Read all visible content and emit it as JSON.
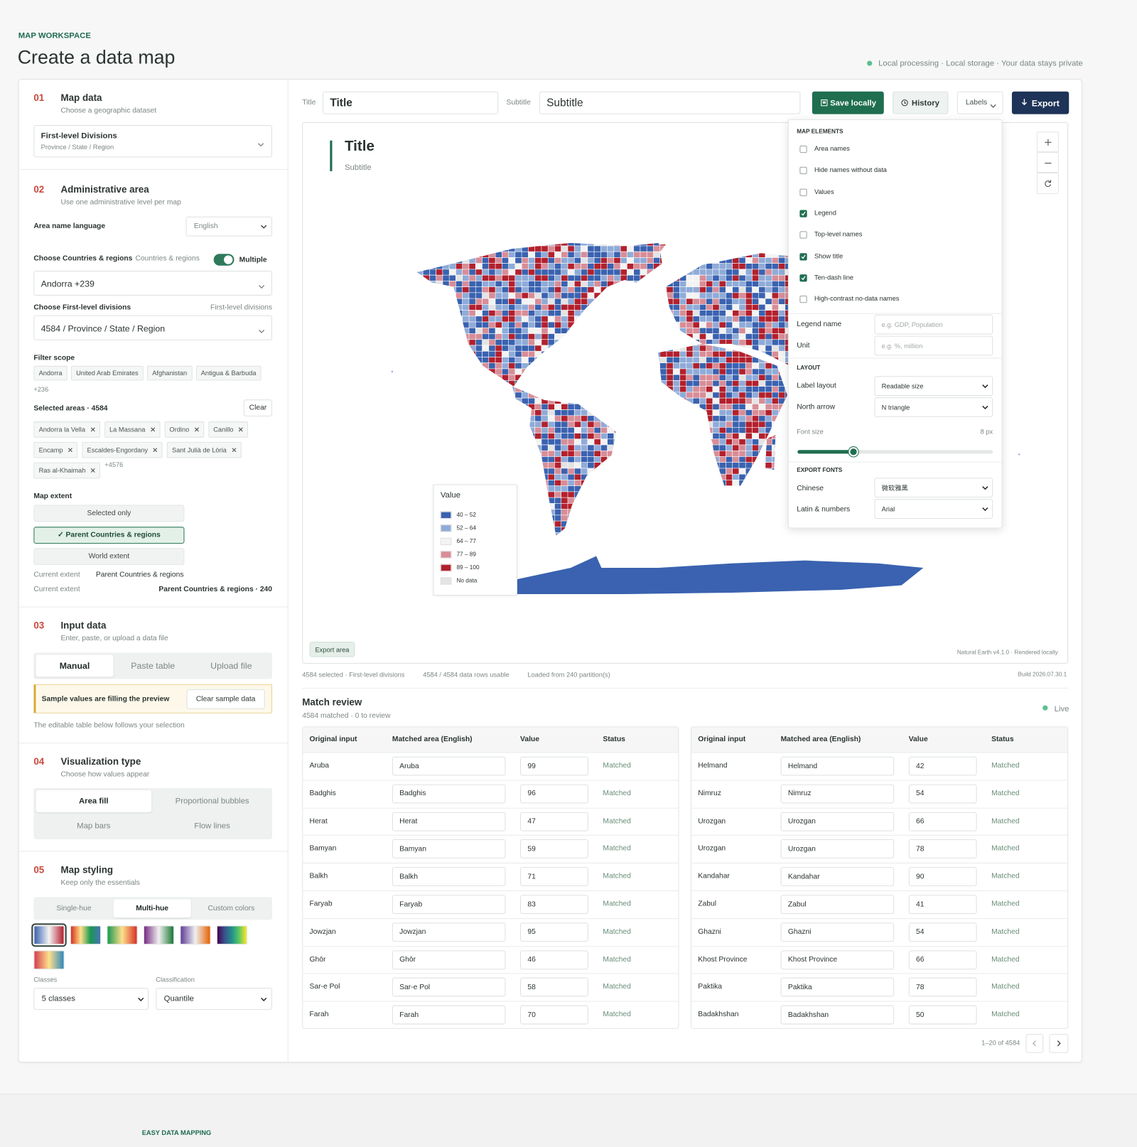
{
  "header": {
    "eyebrow": "MAP WORKSPACE",
    "title": "Create a data map",
    "privacy": "Local processing · Local storage · Your data stays private"
  },
  "map_data": {
    "num": "01",
    "title": "Map data",
    "subtitle": "Choose a geographic dataset",
    "select_title": "First-level Divisions",
    "select_sub": "Province / State / Region"
  },
  "admin": {
    "num": "02",
    "title": "Administrative area",
    "subtitle": "Use one administrative level per map",
    "lang_label": "Area name language",
    "lang_value": "English",
    "countries_label": "Choose Countries & regions",
    "countries_hint": "Countries & regions",
    "multiple": "Multiple",
    "countries_value": "Andorra +239",
    "divisions_label": "Choose First-level divisions",
    "divisions_hint": "First-level divisions",
    "divisions_value": "4584 / Province / State / Region",
    "filter_label": "Filter scope",
    "filter_chips": [
      "Andorra",
      "United Arab Emirates",
      "Afghanistan",
      "Antigua & Barbuda"
    ],
    "filter_more": "+236",
    "selected_label": "Selected areas · 4584",
    "clear": "Clear",
    "selected_chips": [
      "Andorra la Vella",
      "La Massana",
      "Ordino",
      "Canillo",
      "Encamp",
      "Escaldes-Engordany",
      "Sant Julià de Lòria",
      "Ras al-Khaimah"
    ],
    "selected_more": "+4576",
    "extent_label": "Map extent",
    "extent_options": [
      "Selected only",
      "✓ Parent Countries & regions",
      "World extent"
    ],
    "current": [
      {
        "label": "Current extent",
        "value": "Parent Countries & regions"
      },
      {
        "label": "Current extent",
        "value": "Parent Countries & regions · 240"
      }
    ]
  },
  "input": {
    "num": "03",
    "title": "Input data",
    "subtitle": "Enter, paste, or upload a data file",
    "tabs": [
      "Manual",
      "Paste table",
      "Upload file"
    ],
    "notice": "Sample values are filling the preview",
    "clear_sample": "Clear sample data",
    "note": "The editable table below follows your selection"
  },
  "viz": {
    "num": "04",
    "title": "Visualization type",
    "subtitle": "Choose how values appear",
    "options": [
      "Area fill",
      "Proportional bubbles",
      "Map bars",
      "Flow lines"
    ]
  },
  "styling": {
    "num": "05",
    "title": "Map styling",
    "subtitle": "Keep only the essentials",
    "tabs": [
      "Single-hue",
      "Multi-hue",
      "Custom colors"
    ],
    "classes_label": "Classes",
    "classes_value": "5 classes",
    "classification_label": "Classification",
    "classification_value": "Quantile"
  },
  "toolbar": {
    "title_label": "Title",
    "title_value": "Title",
    "subtitle_label": "Subtitle",
    "subtitle_value": "Subtitle",
    "save": "Save locally",
    "history": "History",
    "labels": "Labels",
    "export": "Export"
  },
  "map": {
    "title": "Title",
    "subtitle": "Subtitle",
    "legend_title": "Value",
    "legend": [
      {
        "label": "40 – 52",
        "color": "#3a62b0"
      },
      {
        "label": "52 – 64",
        "color": "#8fabd8"
      },
      {
        "label": "64 – 77",
        "color": "#f3f3f3"
      },
      {
        "label": "77 – 89",
        "color": "#d88d97"
      },
      {
        "label": "89 – 100",
        "color": "#b3202d"
      },
      {
        "label": "No data",
        "color": "#e4e4e4"
      }
    ],
    "export_area": "Export area",
    "credit": "Natural Earth v4.1.0 · Rendered locally"
  },
  "panel": {
    "elements_heading": "MAP ELEMENTS",
    "checks": [
      {
        "label": "Area names",
        "checked": false
      },
      {
        "label": "Hide names without data",
        "checked": false
      },
      {
        "label": "Values",
        "checked": false
      },
      {
        "label": "Legend",
        "checked": true
      },
      {
        "label": "Top-level names",
        "checked": false
      },
      {
        "label": "Show title",
        "checked": true
      },
      {
        "label": "Ten-dash line",
        "checked": true
      },
      {
        "label": "High-contrast no-data names",
        "checked": false
      }
    ],
    "legend_name_label": "Legend name",
    "legend_name_placeholder": "e.g. GDP, Population",
    "unit_label": "Unit",
    "unit_placeholder": "e.g. %, million",
    "layout_heading": "LAYOUT",
    "label_layout_label": "Label layout",
    "label_layout_value": "Readable size",
    "north_label": "North arrow",
    "north_value": "N triangle",
    "font_size_label": "Font size",
    "font_size_value": "8 px",
    "fonts_heading": "EXPORT FONTS",
    "chinese_label": "Chinese",
    "chinese_value": "微软雅黑",
    "latin_label": "Latin & numbers",
    "latin_value": "Arial"
  },
  "status_bar": [
    "4584 selected · First-level divisions",
    "4584 / 4584 data rows usable",
    "Loaded from 240 partition(s)"
  ],
  "build": "Build 2026.07.30.1",
  "review": {
    "title": "Match review",
    "subtitle": "4584 matched · 0 to review",
    "live": "Live",
    "columns": [
      "Original input",
      "Matched area (English)",
      "Value",
      "Status"
    ],
    "tables": [
      [
        {
          "input": "Aruba",
          "match": "Aruba",
          "value": 99,
          "status": "Matched"
        },
        {
          "input": "Badghis",
          "match": "Badghis",
          "value": 96,
          "status": "Matched"
        },
        {
          "input": "Herat",
          "match": "Herat",
          "value": 47,
          "status": "Matched"
        },
        {
          "input": "Bamyan",
          "match": "Bamyan",
          "value": 59,
          "status": "Matched"
        },
        {
          "input": "Balkh",
          "match": "Balkh",
          "value": 71,
          "status": "Matched"
        },
        {
          "input": "Faryab",
          "match": "Faryab",
          "value": 83,
          "status": "Matched"
        },
        {
          "input": "Jowzjan",
          "match": "Jowzjan",
          "value": 95,
          "status": "Matched"
        },
        {
          "input": "Ghōr",
          "match": "Ghōr",
          "value": 46,
          "status": "Matched"
        },
        {
          "input": "Sar-e Pol",
          "match": "Sar-e Pol",
          "value": 58,
          "status": "Matched"
        },
        {
          "input": "Farah",
          "match": "Farah",
          "value": 70,
          "status": "Matched"
        }
      ],
      [
        {
          "input": "Helmand",
          "match": "Helmand",
          "value": 42,
          "status": "Matched"
        },
        {
          "input": "Nimruz",
          "match": "Nimruz",
          "value": 54,
          "status": "Matched"
        },
        {
          "input": "Urozgan",
          "match": "Urozgan",
          "value": 66,
          "status": "Matched"
        },
        {
          "input": "Urozgan",
          "match": "Urozgan",
          "value": 78,
          "status": "Matched"
        },
        {
          "input": "Kandahar",
          "match": "Kandahar",
          "value": 90,
          "status": "Matched"
        },
        {
          "input": "Zabul",
          "match": "Zabul",
          "value": 41,
          "status": "Matched"
        },
        {
          "input": "Ghazni",
          "match": "Ghazni",
          "value": 54,
          "status": "Matched"
        },
        {
          "input": "Khost Province",
          "match": "Khost Province",
          "value": 66,
          "status": "Matched"
        },
        {
          "input": "Paktika",
          "match": "Paktika",
          "value": 78,
          "status": "Matched"
        },
        {
          "input": "Badakhshan",
          "match": "Badakhshan",
          "value": 50,
          "status": "Matched"
        }
      ]
    ],
    "pagination": "1–20 of 4584"
  },
  "footer": "EASY DATA MAPPING"
}
